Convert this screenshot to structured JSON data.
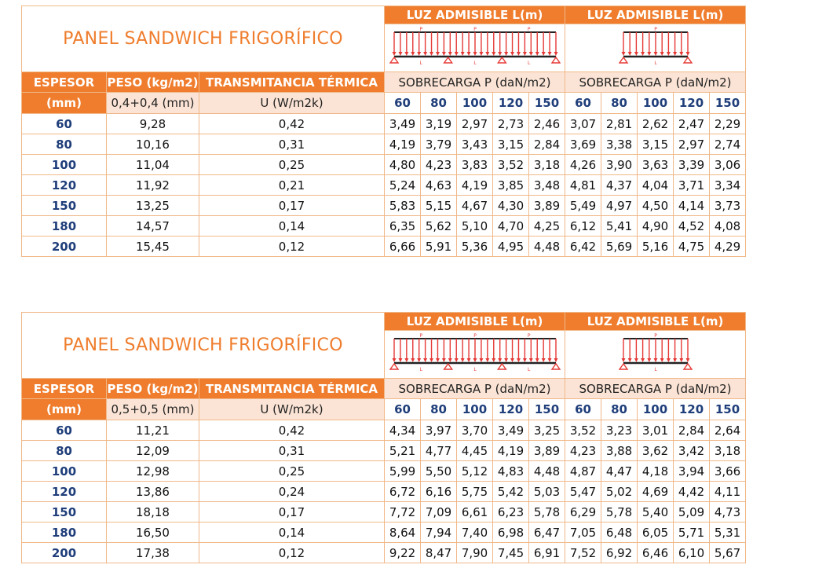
{
  "tables": [
    {
      "title": "PANEL SANDWICH FRIGORÍFICO",
      "luz_headers": [
        "LUZ ADMISIBLE L(m)",
        "LUZ ADMISIBLE L(m)"
      ],
      "diagram_labels": {
        "p": "P",
        "l": "L"
      },
      "col_espesor": "ESPESOR",
      "col_peso": "PESO (kg/m2)",
      "col_trans": "TRANSMITANCIA TÉRMICA",
      "sobrecarga": [
        "SOBRECARGA P (daN/m2)",
        "SOBRECARGA P (daN/m2)"
      ],
      "espesor_unit": "(mm)",
      "peso_sub": "0,4+0,4 (mm)",
      "trans_sub": "U (W/m2k)",
      "loads": [
        "60",
        "80",
        "100",
        "120",
        "150",
        "60",
        "80",
        "100",
        "120",
        "150"
      ],
      "rows": [
        {
          "espesor": "60",
          "peso": "9,28",
          "u": "0,42",
          "vals": [
            "3,49",
            "3,19",
            "2,97",
            "2,73",
            "2,46",
            "3,07",
            "2,81",
            "2,62",
            "2,47",
            "2,29"
          ]
        },
        {
          "espesor": "80",
          "peso": "10,16",
          "u": "0,31",
          "vals": [
            "4,19",
            "3,79",
            "3,43",
            "3,15",
            "2,84",
            "3,69",
            "3,38",
            "3,15",
            "2,97",
            "2,74"
          ]
        },
        {
          "espesor": "100",
          "peso": "11,04",
          "u": "0,25",
          "vals": [
            "4,80",
            "4,23",
            "3,83",
            "3,52",
            "3,18",
            "4,26",
            "3,90",
            "3,63",
            "3,39",
            "3,06"
          ]
        },
        {
          "espesor": "120",
          "peso": "11,92",
          "u": "0,21",
          "vals": [
            "5,24",
            "4,63",
            "4,19",
            "3,85",
            "3,48",
            "4,81",
            "4,37",
            "4,04",
            "3,71",
            "3,34"
          ]
        },
        {
          "espesor": "150",
          "peso": "13,25",
          "u": "0,17",
          "vals": [
            "5,83",
            "5,15",
            "4,67",
            "4,30",
            "3,89",
            "5,49",
            "4,97",
            "4,50",
            "4,14",
            "3,73"
          ]
        },
        {
          "espesor": "180",
          "peso": "14,57",
          "u": "0,14",
          "vals": [
            "6,35",
            "5,62",
            "5,10",
            "4,70",
            "4,25",
            "6,12",
            "5,41",
            "4,90",
            "4,52",
            "4,08"
          ]
        },
        {
          "espesor": "200",
          "peso": "15,45",
          "u": "0,12",
          "vals": [
            "6,66",
            "5,91",
            "5,36",
            "4,95",
            "4,48",
            "6,42",
            "5,69",
            "5,16",
            "4,75",
            "4,29"
          ]
        }
      ]
    },
    {
      "title": "PANEL SANDWICH FRIGORÍFICO",
      "luz_headers": [
        "LUZ ADMISIBLE L(m)",
        "LUZ ADMISIBLE L(m)"
      ],
      "diagram_labels": {
        "p": "P",
        "l": "L"
      },
      "col_espesor": "ESPESOR",
      "col_peso": "PESO (kg/m2)",
      "col_trans": "TRANSMITANCIA TÉRMICA",
      "sobrecarga": [
        "SOBRECARGA P (daN/m2)",
        "SOBRECARGA P (daN/m2)"
      ],
      "espesor_unit": "(mm)",
      "peso_sub": "0,5+0,5 (mm)",
      "trans_sub": "U (W/m2k)",
      "loads": [
        "60",
        "80",
        "100",
        "120",
        "150",
        "60",
        "80",
        "100",
        "120",
        "150"
      ],
      "rows": [
        {
          "espesor": "60",
          "peso": "11,21",
          "u": "0,42",
          "vals": [
            "4,34",
            "3,97",
            "3,70",
            "3,49",
            "3,25",
            "3,52",
            "3,23",
            "3,01",
            "2,84",
            "2,64"
          ]
        },
        {
          "espesor": "80",
          "peso": "12,09",
          "u": "0,31",
          "vals": [
            "5,21",
            "4,77",
            "4,45",
            "4,19",
            "3,89",
            "4,23",
            "3,88",
            "3,62",
            "3,42",
            "3,18"
          ]
        },
        {
          "espesor": "100",
          "peso": "12,98",
          "u": "0,25",
          "vals": [
            "5,99",
            "5,50",
            "5,12",
            "4,83",
            "4,48",
            "4,87",
            "4,47",
            "4,18",
            "3,94",
            "3,66"
          ]
        },
        {
          "espesor": "120",
          "peso": "13,86",
          "u": "0,24",
          "vals": [
            "6,72",
            "6,16",
            "5,75",
            "5,42",
            "5,03",
            "5,47",
            "5,02",
            "4,69",
            "4,42",
            "4,11"
          ]
        },
        {
          "espesor": "150",
          "peso": "18,18",
          "u": "0,17",
          "vals": [
            "7,72",
            "7,09",
            "6,61",
            "6,23",
            "5,78",
            "6,29",
            "5,78",
            "5,40",
            "5,09",
            "4,73"
          ]
        },
        {
          "espesor": "180",
          "peso": "16,50",
          "u": "0,14",
          "vals": [
            "8,64",
            "7,94",
            "7,40",
            "6,98",
            "6,47",
            "7,05",
            "6,48",
            "6,05",
            "5,71",
            "5,31"
          ]
        },
        {
          "espesor": "200",
          "peso": "17,38",
          "u": "0,12",
          "vals": [
            "9,22",
            "8,47",
            "7,90",
            "7,45",
            "6,91",
            "7,52",
            "6,92",
            "6,46",
            "6,10",
            "5,67"
          ]
        }
      ]
    }
  ],
  "colors": {
    "accent": "#ef7d2d",
    "peach": "#fbe4d5",
    "navy": "#1f3e7a",
    "beam_red": "#e53935",
    "grid": "#f0b889"
  }
}
